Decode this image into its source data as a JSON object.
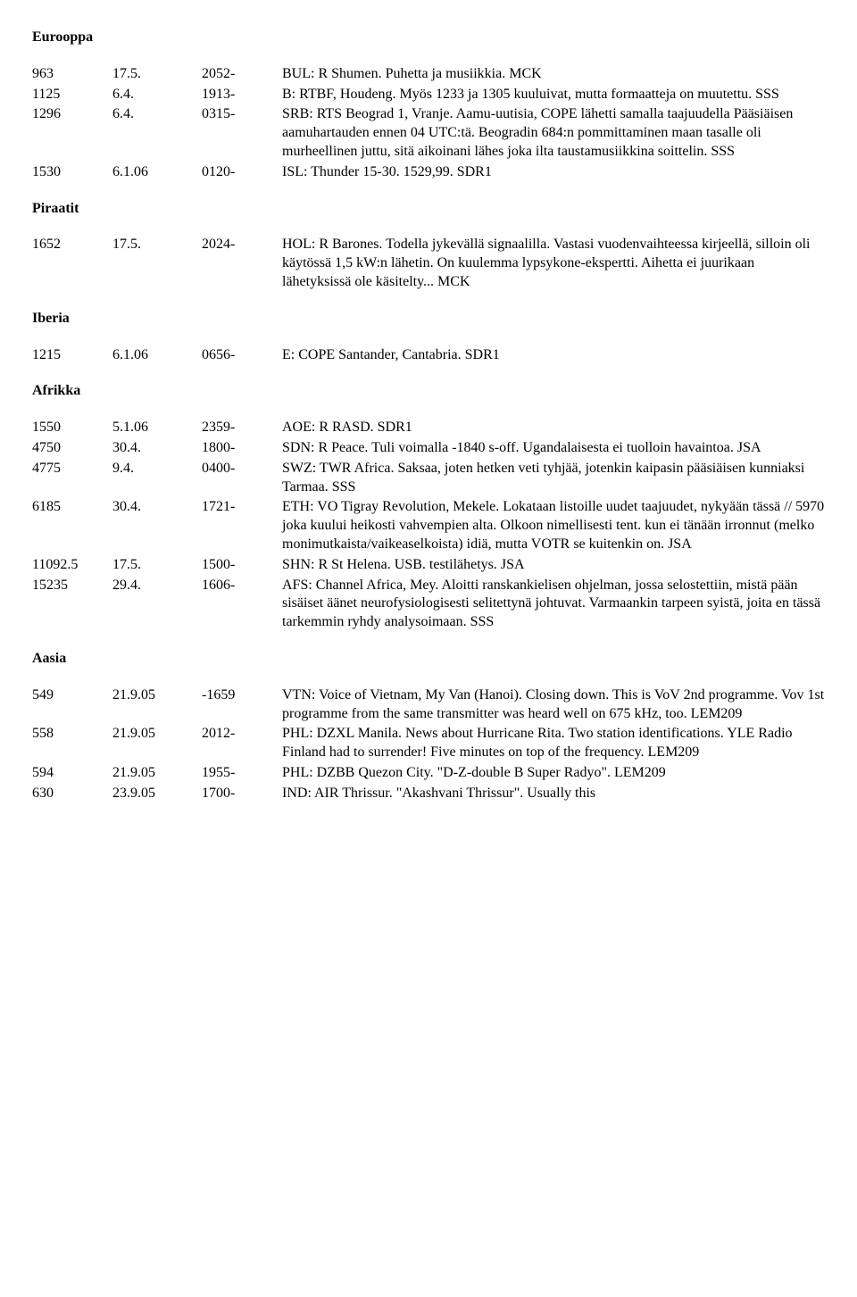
{
  "sections": [
    {
      "title": "Eurooppa",
      "rows": [
        {
          "c1": "963",
          "c2": "17.5.",
          "c3": "2052-",
          "c4": "BUL: R Shumen. Puhetta ja musiikkia. MCK"
        },
        {
          "c1": "1125",
          "c2": "6.4.",
          "c3": "1913-",
          "c4": "B: RTBF, Houdeng. Myös 1233 ja 1305 kuuluivat, mutta formaatteja on muutettu. SSS"
        },
        {
          "c1": "1296",
          "c2": "6.4.",
          "c3": "0315-",
          "c4": "SRB: RTS Beograd 1, Vranje. Aamu-uutisia, COPE lähetti samalla taajuudella Pääsiäisen aamuhartauden ennen 04 UTC:tä. Beogradin 684:n pommittaminen maan tasalle oli murheellinen juttu, sitä aikoinani lähes joka ilta taustamusiikkina soittelin. SSS"
        },
        {
          "c1": "1530",
          "c2": "6.1.06",
          "c3": "0120-",
          "c4": "ISL: Thunder 15-30. 1529,99. SDR1"
        }
      ]
    },
    {
      "title": "Piraatit",
      "rows": [
        {
          "c1": "1652",
          "c2": "17.5.",
          "c3": "2024-",
          "c4": "HOL: R Barones. Todella jykevällä signaalilla. Vastasi vuodenvaihteessa kirjeellä, silloin oli käytössä 1,5 kW:n lähetin. On kuulemma lypsykone-ekspertti. Aihetta ei juurikaan lähetyksissä ole käsitelty... MCK"
        }
      ]
    },
    {
      "title": "Iberia",
      "rows": [
        {
          "c1": "1215",
          "c2": "6.1.06",
          "c3": "0656-",
          "c4": "E: COPE Santander, Cantabria. SDR1"
        }
      ]
    },
    {
      "title": "Afrikka",
      "rows": [
        {
          "c1": "1550",
          "c2": "5.1.06",
          "c3": "2359-",
          "c4": "AOE: R RASD. SDR1"
        },
        {
          "c1": "4750",
          "c2": "30.4.",
          "c3": "1800-",
          "c4": "SDN: R Peace. Tuli voimalla -1840 s-off. Ugandalaisesta ei tuolloin havaintoa. JSA"
        },
        {
          "c1": "4775",
          "c2": "9.4.",
          "c3": "0400-",
          "c4": "SWZ: TWR Africa. Saksaa, joten hetken veti tyhjää, jotenkin kaipasin pääsiäisen kunniaksi Tarmaa. SSS"
        },
        {
          "c1": "6185",
          "c2": "30.4.",
          "c3": "1721-",
          "c4": "ETH: VO Tigray Revolution, Mekele. Lokataan listoille uudet taajuudet, nykyään tässä // 5970 joka kuului heikosti vahvempien alta. Olkoon nimellisesti tent. kun ei tänään irronnut (melko monimutkaista/vaikeaselkoista) idiä, mutta VOTR se kuitenkin on. JSA"
        },
        {
          "c1": "11092.5",
          "c2": "17.5.",
          "c3": "1500-",
          "c4": "SHN: R St Helena. USB. testilähetys. JSA"
        },
        {
          "c1": "15235",
          "c2": "29.4.",
          "c3": "1606-",
          "c4": "AFS: Channel Africa, Mey. Aloitti ranskankielisen ohjelman, jossa selostettiin, mistä pään sisäiset äänet neurofysiologisesti selitettynä johtuvat. Varmaankin tarpeen syistä, joita en tässä tarkemmin ryhdy analysoimaan. SSS"
        }
      ]
    },
    {
      "title": "Aasia",
      "rows": [
        {
          "c1": "549",
          "c2": "21.9.05",
          "c3": "-1659",
          "c4": "VTN: Voice of Vietnam, My Van (Hanoi). Closing down. This is VoV 2nd programme. Vov 1st programme from the same transmitter was heard well on 675 kHz, too. LEM209"
        },
        {
          "c1": "558",
          "c2": "21.9.05",
          "c3": "2012-",
          "c4": "PHL: DZXL Manila. News about Hurricane Rita. Two station identifications. YLE Radio Finland had to surrender! Five minutes on top of the frequency. LEM209"
        },
        {
          "c1": "594",
          "c2": "21.9.05",
          "c3": "1955-",
          "c4": "PHL: DZBB Quezon City. \"D-Z-double B Super Radyo\". LEM209"
        },
        {
          "c1": "630",
          "c2": "23.9.05",
          "c3": "1700-",
          "c4": "IND: AIR Thrissur. \"Akashvani Thrissur\". Usually this"
        }
      ]
    }
  ]
}
